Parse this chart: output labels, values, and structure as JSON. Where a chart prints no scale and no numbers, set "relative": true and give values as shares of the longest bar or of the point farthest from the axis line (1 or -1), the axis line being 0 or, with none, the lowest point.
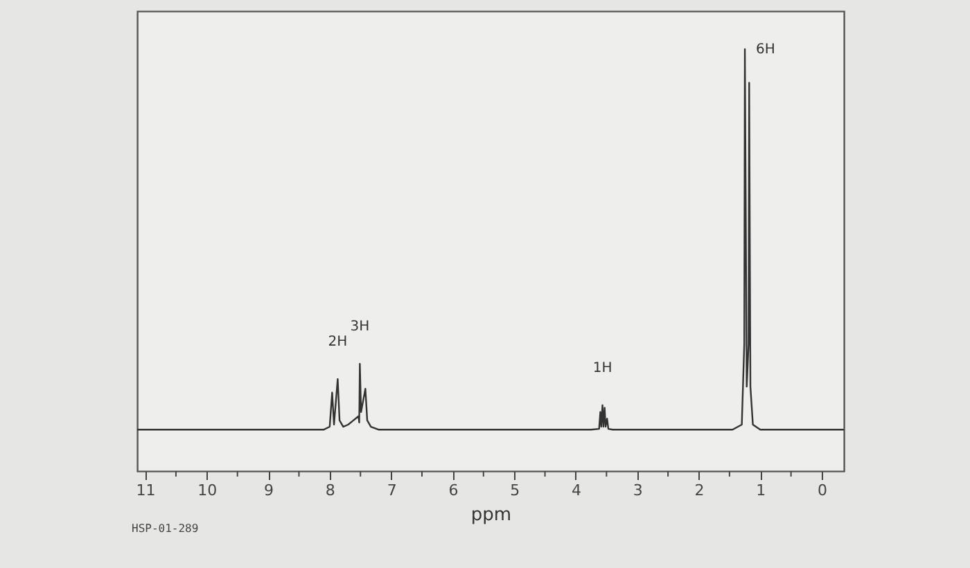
{
  "chart_data": {
    "type": "line",
    "relative": true,
    "xlabel": "ppm",
    "xlim": [
      11.13,
      -0.36
    ],
    "xticks": [
      11,
      {
        "value": 10.5,
        "label": null
      },
      10,
      {
        "value": 9.5,
        "label": null
      },
      9,
      {
        "value": 8.5,
        "label": null
      },
      8,
      {
        "value": 7.5,
        "label": null
      },
      7,
      {
        "value": 6.5,
        "label": null
      },
      6,
      {
        "value": 5.5,
        "label": null
      },
      5,
      {
        "value": 4.5,
        "label": null
      },
      4,
      {
        "value": 3.5,
        "label": null
      },
      3,
      {
        "value": 2.5,
        "label": null
      },
      2,
      {
        "value": 1.5,
        "label": null
      },
      1,
      {
        "value": 0.5,
        "label": null
      },
      0
    ],
    "tick_labels": "x",
    "grid": false,
    "x": [
      11.13,
      8.1,
      8.0,
      7.96,
      7.93,
      7.87,
      7.84,
      7.78,
      7.7,
      7.53,
      7.52,
      7.51,
      7.49,
      7.42,
      7.39,
      7.33,
      7.2,
      3.75,
      3.62,
      3.6,
      3.585,
      3.565,
      3.55,
      3.53,
      3.515,
      3.49,
      3.47,
      3.4,
      1.45,
      1.3,
      1.26,
      1.25,
      1.22,
      1.19,
      1.18,
      1.16,
      1.12,
      1.0,
      -0.36
    ],
    "series": [
      {
        "color": "#333333",
        "values": [
          0.098,
          0.098,
          0.105,
          0.186,
          0.11,
          0.218,
          0.12,
          0.105,
          0.11,
          0.13,
          0.115,
          0.254,
          0.14,
          0.195,
          0.12,
          0.105,
          0.098,
          0.098,
          0.1,
          0.14,
          0.105,
          0.156,
          0.105,
          0.15,
          0.105,
          0.124,
          0.1,
          0.098,
          0.098,
          0.11,
          0.3,
          1.0,
          0.2,
          0.3,
          0.92,
          0.2,
          0.11,
          0.098,
          0.098
        ]
      }
    ],
    "annotations": [
      {
        "text": "2H",
        "x": 7.87,
        "y": 0.218
      },
      {
        "text": "3H",
        "x": 7.51,
        "y": 0.254
      },
      {
        "text": "1H",
        "x": 3.565,
        "y": 0.156
      },
      {
        "text": "6H",
        "x": 1.25,
        "y": 1.0
      },
      "HSP-01-289"
    ]
  }
}
